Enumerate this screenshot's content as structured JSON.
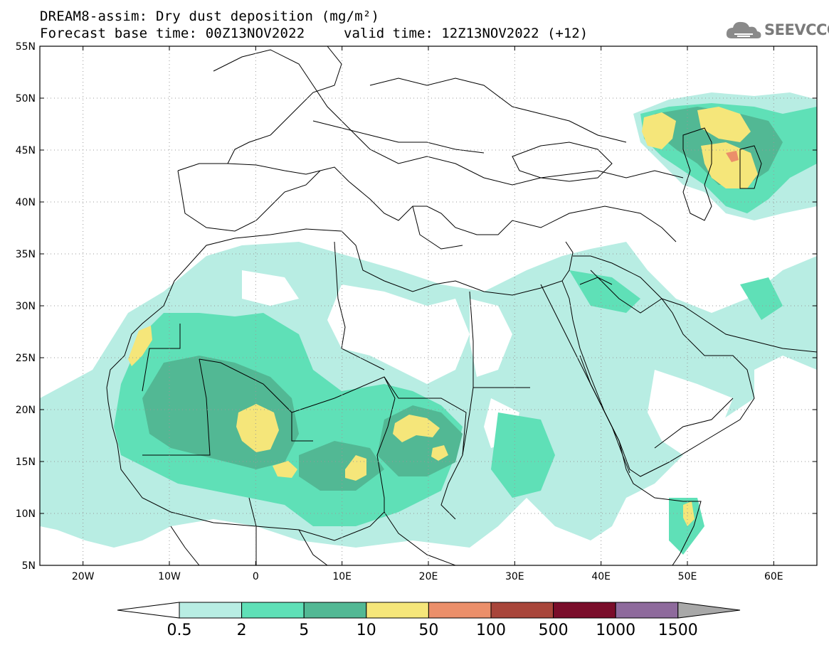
{
  "title": {
    "line1": "DREAM8-assim: Dry dust deposition (mg/m²)",
    "line2": "Forecast base time: 00Z13NOV2022",
    "valid": "valid time: 12Z13NOV2022 (+12)"
  },
  "logo": {
    "text": "SEEVCCC",
    "icon": "cloud-logo-icon"
  },
  "map": {
    "lon_range": [
      -25,
      65
    ],
    "lat_range": [
      5,
      55
    ],
    "lat_ticks": [
      "55N",
      "50N",
      "45N",
      "40N",
      "35N",
      "30N",
      "25N",
      "20N",
      "15N",
      "10N",
      "5N"
    ],
    "lon_ticks": [
      "20W",
      "10W",
      "0",
      "10E",
      "20E",
      "30E",
      "40E",
      "50E",
      "60E"
    ],
    "grid": "dotted"
  },
  "colorbar": {
    "labels": [
      "0.5",
      "2",
      "5",
      "10",
      "50",
      "100",
      "500",
      "1000",
      "1500"
    ],
    "colors": [
      "#b8ede3",
      "#5fe0b7",
      "#52b894",
      "#f5e67a",
      "#eb8f6a",
      "#a8453a",
      "#7a0d2a",
      "#8e6a9c",
      "#a8a8a8"
    ],
    "left_extension_color": "#ffffff",
    "right_extension_color": "#a8a8a8"
  }
}
